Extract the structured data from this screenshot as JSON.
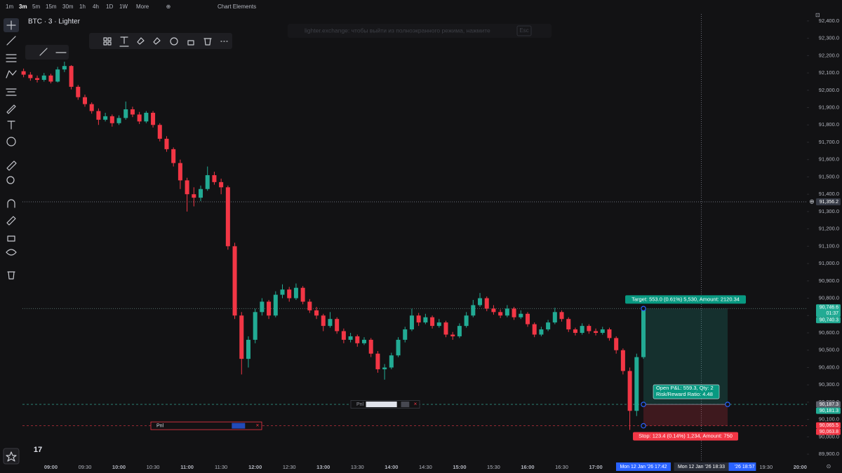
{
  "chart_data": {
    "type": "candlestick",
    "symbol": "BTC · 3 · Lighter",
    "toolbar": {
      "intervals": [
        "1m",
        "3m",
        "5m",
        "15m",
        "30m",
        "1h",
        "4h",
        "1D",
        "1W"
      ],
      "selected": 1,
      "more": "More",
      "chart_elements": "Chart Elements"
    },
    "notice": {
      "text": "lighter.exchange: чтобы выйти из полноэкранного режима, нажмите",
      "key": "Esc"
    },
    "colors": {
      "up": "#22ab94",
      "down": "#f23645"
    },
    "grid": false,
    "ylim": [
      89860,
      92440
    ],
    "xlim": [
      "08:35",
      "20:06"
    ],
    "yticks": [
      {
        "value": 92400,
        "label": "92,400.0"
      },
      {
        "value": 92300,
        "label": "92,300.0"
      },
      {
        "value": 92200,
        "label": "92,200.0"
      },
      {
        "value": 92100,
        "label": "92,100.0"
      },
      {
        "value": 92000,
        "label": "92,000.0"
      },
      {
        "value": 91900,
        "label": "91,900.0"
      },
      {
        "value": 91800,
        "label": "91,800.0"
      },
      {
        "value": 91700,
        "label": "91,700.0"
      },
      {
        "value": 91600,
        "label": "91,600.0"
      },
      {
        "value": 91500,
        "label": "91,500.0"
      },
      {
        "value": 91400,
        "label": "91,400.0"
      },
      {
        "value": 91300,
        "label": "91,300.0"
      },
      {
        "value": 91200,
        "label": "91,200.0"
      },
      {
        "value": 91100,
        "label": "91,100.0"
      },
      {
        "value": 91000,
        "label": "91,000.0"
      },
      {
        "value": 90900,
        "label": "90,900.0"
      },
      {
        "value": 90800,
        "label": "90,800.0"
      },
      {
        "value": 90700,
        "label": "90,700.0"
      },
      {
        "value": 90600,
        "label": "90,600.0"
      },
      {
        "value": 90500,
        "label": "90,500.0"
      },
      {
        "value": 90400,
        "label": "90,400.0"
      },
      {
        "value": 90300,
        "label": "90,300.0"
      },
      {
        "value": 90200,
        "label": "90,200.0"
      },
      {
        "value": 90100,
        "label": "90,100.0"
      },
      {
        "value": 90000,
        "label": "90,000.0"
      },
      {
        "value": 89900,
        "label": "89,900.0"
      }
    ],
    "xticks": [
      "09:00",
      "09:30",
      "10:00",
      "10:30",
      "11:00",
      "11:30",
      "12:00",
      "12:30",
      "13:00",
      "13:30",
      "14:00",
      "14:30",
      "15:00",
      "15:30",
      "16:00",
      "16:30",
      "17:00",
      "19:30",
      "20:00"
    ],
    "candles": [
      [
        "08:36",
        92110,
        92125,
        92075,
        92090
      ],
      [
        "08:42",
        92090,
        92105,
        92055,
        92070
      ],
      [
        "08:48",
        92070,
        92085,
        92045,
        92060
      ],
      [
        "08:54",
        92060,
        92100,
        92050,
        92085
      ],
      [
        "09:00",
        92085,
        92095,
        92040,
        92050
      ],
      [
        "09:06",
        92050,
        92135,
        92045,
        92120
      ],
      [
        "09:12",
        92120,
        92165,
        92105,
        92140
      ],
      [
        "09:18",
        92140,
        92145,
        92005,
        92020
      ],
      [
        "09:24",
        92020,
        92030,
        91945,
        91960
      ],
      [
        "09:30",
        91960,
        91975,
        91905,
        91920
      ],
      [
        "09:36",
        91920,
        91930,
        91865,
        91880
      ],
      [
        "09:42",
        91880,
        91895,
        91800,
        91830
      ],
      [
        "09:48",
        91830,
        91870,
        91820,
        91850
      ],
      [
        "09:54",
        91850,
        91860,
        91790,
        91810
      ],
      [
        "10:00",
        91810,
        91855,
        91800,
        91840
      ],
      [
        "10:06",
        91840,
        91935,
        91830,
        91890
      ],
      [
        "10:12",
        91890,
        91905,
        91845,
        91860
      ],
      [
        "10:18",
        91860,
        91875,
        91805,
        91820
      ],
      [
        "10:24",
        91820,
        91880,
        91810,
        91870
      ],
      [
        "10:30",
        91870,
        91880,
        91785,
        91800
      ],
      [
        "10:36",
        91800,
        91810,
        91705,
        91720
      ],
      [
        "10:42",
        91720,
        91735,
        91645,
        91660
      ],
      [
        "10:48",
        91660,
        91670,
        91560,
        91580
      ],
      [
        "10:54",
        91580,
        91600,
        91430,
        91480
      ],
      [
        "11:00",
        91480,
        91495,
        91300,
        91400
      ],
      [
        "11:06",
        91400,
        91440,
        91330,
        91380
      ],
      [
        "11:12",
        91380,
        91450,
        91360,
        91430
      ],
      [
        "11:18",
        91430,
        91560,
        91420,
        91510
      ],
      [
        "11:24",
        91510,
        91530,
        91455,
        91470
      ],
      [
        "11:30",
        91470,
        91490,
        91400,
        91440
      ],
      [
        "11:36",
        91440,
        91450,
        91080,
        91100
      ],
      [
        "11:42",
        91100,
        91120,
        90680,
        90700
      ],
      [
        "11:48",
        90700,
        90720,
        90360,
        90450
      ],
      [
        "11:54",
        90450,
        90580,
        90400,
        90560
      ],
      [
        "12:00",
        90560,
        90740,
        90540,
        90720
      ],
      [
        "12:06",
        90720,
        90800,
        90700,
        90780
      ],
      [
        "12:12",
        90780,
        90790,
        90680,
        90700
      ],
      [
        "12:18",
        90700,
        90840,
        90690,
        90820
      ],
      [
        "12:24",
        90820,
        90880,
        90800,
        90850
      ],
      [
        "12:30",
        90850,
        90865,
        90780,
        90800
      ],
      [
        "12:36",
        90800,
        90885,
        90790,
        90860
      ],
      [
        "12:42",
        90860,
        90870,
        90765,
        90780
      ],
      [
        "12:48",
        90780,
        90795,
        90715,
        90730
      ],
      [
        "12:54",
        90730,
        90750,
        90680,
        90700
      ],
      [
        "13:00",
        90700,
        90710,
        90610,
        90640
      ],
      [
        "13:06",
        90640,
        90720,
        90630,
        90680
      ],
      [
        "13:12",
        90680,
        90690,
        90595,
        90610
      ],
      [
        "13:18",
        90610,
        90625,
        90540,
        90560
      ],
      [
        "13:24",
        90560,
        90600,
        90545,
        90580
      ],
      [
        "13:30",
        90580,
        90590,
        90520,
        90540
      ],
      [
        "13:36",
        90540,
        90575,
        90530,
        90560
      ],
      [
        "13:42",
        90560,
        90570,
        90460,
        90480
      ],
      [
        "13:48",
        90480,
        90495,
        90370,
        90390
      ],
      [
        "13:54",
        90390,
        90420,
        90330,
        90400
      ],
      [
        "14:00",
        90400,
        90485,
        90390,
        90470
      ],
      [
        "14:06",
        90470,
        90575,
        90460,
        90560
      ],
      [
        "14:12",
        90560,
        90635,
        90545,
        90620
      ],
      [
        "14:18",
        90620,
        90740,
        90610,
        90700
      ],
      [
        "14:24",
        90700,
        90715,
        90640,
        90660
      ],
      [
        "14:30",
        90660,
        90710,
        90650,
        90690
      ],
      [
        "14:36",
        90690,
        90700,
        90625,
        90640
      ],
      [
        "14:42",
        90640,
        90680,
        90630,
        90660
      ],
      [
        "14:48",
        90660,
        90670,
        90575,
        90590
      ],
      [
        "14:54",
        90590,
        90605,
        90560,
        90580
      ],
      [
        "15:00",
        90580,
        90655,
        90570,
        90640
      ],
      [
        "15:06",
        90640,
        90720,
        90630,
        90700
      ],
      [
        "15:12",
        90700,
        90790,
        90690,
        90760
      ],
      [
        "15:18",
        90760,
        90830,
        90750,
        90800
      ],
      [
        "15:24",
        90800,
        90810,
        90725,
        90740
      ],
      [
        "15:30",
        90740,
        90760,
        90705,
        90720
      ],
      [
        "15:36",
        90720,
        90735,
        90685,
        90700
      ],
      [
        "15:42",
        90700,
        90760,
        90690,
        90740
      ],
      [
        "15:48",
        90740,
        90750,
        90675,
        90690
      ],
      [
        "15:54",
        90690,
        90730,
        90680,
        90710
      ],
      [
        "16:00",
        90710,
        90720,
        90635,
        90650
      ],
      [
        "16:06",
        90650,
        90660,
        90575,
        90590
      ],
      [
        "16:12",
        90590,
        90635,
        90580,
        90620
      ],
      [
        "16:18",
        90620,
        90675,
        90610,
        90660
      ],
      [
        "16:24",
        90660,
        90745,
        90650,
        90720
      ],
      [
        "16:30",
        90720,
        90730,
        90665,
        90680
      ],
      [
        "16:36",
        90680,
        90690,
        90605,
        90620
      ],
      [
        "16:42",
        90620,
        90630,
        90585,
        90600
      ],
      [
        "16:48",
        90600,
        90655,
        90590,
        90640
      ],
      [
        "16:54",
        90640,
        90650,
        90595,
        90610
      ],
      [
        "17:00",
        90610,
        90625,
        90585,
        90600
      ],
      [
        "17:06",
        90600,
        90635,
        90590,
        90620
      ],
      [
        "17:12",
        90620,
        90630,
        90555,
        90570
      ],
      [
        "17:18",
        90570,
        90580,
        90480,
        90500
      ],
      [
        "17:24",
        90500,
        90510,
        90360,
        90380
      ],
      [
        "17:30",
        90380,
        90400,
        90040,
        90150
      ],
      [
        "17:36",
        90150,
        90480,
        90120,
        90460
      ],
      [
        "17:42",
        90460,
        90750,
        90450,
        90740
      ]
    ],
    "crosshair": {
      "price": {
        "value": 91356.2,
        "label": "91,356.2"
      },
      "time": "18:33"
    },
    "position": {
      "entry": 90187.3,
      "target": 90740.3,
      "stop": 90063.8,
      "start": "17:42",
      "target_label": "Target: 553.0 (0.61%) 5,530, Amount: 2120.34",
      "pnl_label": "Open P&L: 559.3, Qty: 2",
      "ratio_label": "Risk/Reward Ratio: 4.48",
      "stop_label": "Stop: 123.4 (0.14%) 1,234, Amount: 750"
    },
    "orders": [
      {
        "label": "Pnl",
        "price": 90187.3
      },
      {
        "label": "Pnl",
        "price": 90063.8
      }
    ],
    "price_labels": [
      {
        "value": 90746.6,
        "label": "90,746.6",
        "color": "#22ab94"
      },
      {
        "value": 90740.3,
        "label": "90,740.3",
        "color": "#22ab94"
      },
      {
        "value": 90187.3,
        "label": "90,187.3",
        "color": "#5d606b"
      },
      {
        "value": 90181.3,
        "label": "90,181.3",
        "color": "#22ab94"
      },
      {
        "value": 90065.5,
        "label": "90,065.5",
        "color": "#f23645"
      },
      {
        "value": 90063.8,
        "label": "90,063.8",
        "color": "#f23645"
      }
    ],
    "countdown": "01:37",
    "time_labels": [
      {
        "value": "18:57",
        "label": "'26  18:57",
        "color": "#2962ff"
      },
      {
        "value": "17:42",
        "label": "Mon 12 Jan '26  17:42",
        "color": "#2962ff"
      },
      {
        "value": "18:33",
        "label": "Mon 12 Jan '26  18:33",
        "color": "#2a2e39"
      }
    ]
  }
}
